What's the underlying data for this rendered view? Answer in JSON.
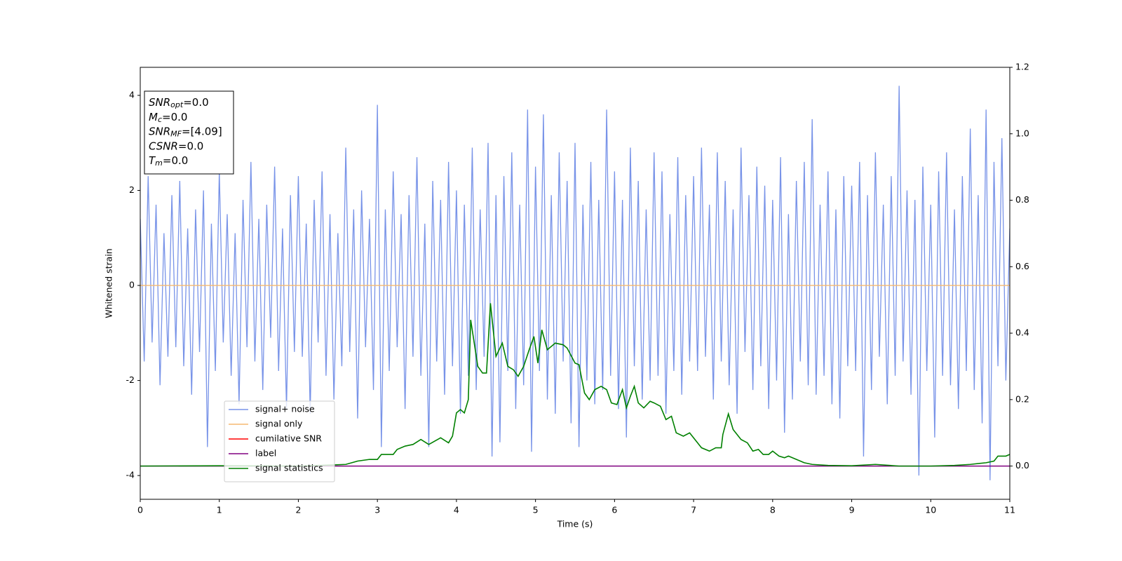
{
  "chart_data": {
    "type": "line",
    "xlabel": "Time (s)",
    "ylabel": "Whitened strain",
    "xlim": [
      0,
      11
    ],
    "xticks": [
      0,
      1,
      2,
      3,
      4,
      5,
      6,
      7,
      8,
      9,
      10,
      11
    ],
    "ylim": [
      -4.5,
      4.59
    ],
    "yticks": [
      -4,
      -2,
      0,
      2,
      4
    ],
    "y2lim": [
      -0.1,
      1.2
    ],
    "y2ticks": [
      {
        "value": 0,
        "label": "0.0"
      },
      0.2,
      0.4,
      0.6,
      0.8,
      {
        "value": 1,
        "label": "1.0"
      },
      1.2
    ],
    "annotation": [
      {
        "base": "SNR",
        "sub": "opt",
        "rest": "=0.0"
      },
      {
        "base": "M",
        "sub": "c",
        "rest": "=0.0"
      },
      {
        "base": "SNR",
        "sub": "MF",
        "rest": "=[4.09]"
      },
      {
        "base": "CSNR",
        "rest": "=0.0"
      },
      {
        "base": "T",
        "sub": "m",
        "rest": "=0.0"
      }
    ],
    "series": [
      {
        "name": "signal+ noise",
        "color": "#7893e8",
        "x": [
          0,
          0.05,
          0.1,
          0.15,
          0.2,
          0.25,
          0.3,
          0.35,
          0.4,
          0.45,
          0.5,
          0.55,
          0.6,
          0.65,
          0.7,
          0.75,
          0.8,
          0.85,
          0.9,
          0.95,
          1,
          1.05,
          1.1,
          1.15,
          1.2,
          1.25,
          1.3,
          1.35,
          1.4,
          1.45,
          1.5,
          1.55,
          1.6,
          1.65,
          1.7,
          1.75,
          1.8,
          1.85,
          1.9,
          1.95,
          2,
          2.05,
          2.1,
          2.15,
          2.2,
          2.25,
          2.3,
          2.35,
          2.4,
          2.45,
          2.5,
          2.55,
          2.6,
          2.65,
          2.7,
          2.75,
          2.8,
          2.85,
          2.9,
          2.95,
          3,
          3.05,
          3.1,
          3.15,
          3.2,
          3.25,
          3.3,
          3.35,
          3.4,
          3.45,
          3.5,
          3.55,
          3.6,
          3.65,
          3.7,
          3.75,
          3.8,
          3.85,
          3.9,
          3.95,
          4,
          4.05,
          4.1,
          4.15,
          4.2,
          4.25,
          4.3,
          4.35,
          4.4,
          4.45,
          4.5,
          4.55,
          4.6,
          4.65,
          4.7,
          4.75,
          4.8,
          4.85,
          4.9,
          4.95,
          5,
          5.05,
          5.1,
          5.15,
          5.2,
          5.25,
          5.3,
          5.35,
          5.4,
          5.45,
          5.5,
          5.55,
          5.6,
          5.65,
          5.7,
          5.75,
          5.8,
          5.85,
          5.9,
          5.95,
          6,
          6.05,
          6.1,
          6.15,
          6.2,
          6.25,
          6.3,
          6.35,
          6.4,
          6.45,
          6.5,
          6.55,
          6.6,
          6.65,
          6.7,
          6.75,
          6.8,
          6.85,
          6.9,
          6.95,
          7,
          7.05,
          7.1,
          7.15,
          7.2,
          7.25,
          7.3,
          7.35,
          7.4,
          7.45,
          7.5,
          7.55,
          7.6,
          7.65,
          7.7,
          7.75,
          7.8,
          7.85,
          7.9,
          7.95,
          8,
          8.05,
          8.1,
          8.15,
          8.2,
          8.25,
          8.3,
          8.35,
          8.4,
          8.45,
          8.5,
          8.55,
          8.6,
          8.65,
          8.7,
          8.75,
          8.8,
          8.85,
          8.9,
          8.95,
          9,
          9.05,
          9.1,
          9.15,
          9.2,
          9.25,
          9.3,
          9.35,
          9.4,
          9.45,
          9.5,
          9.55,
          9.6,
          9.65,
          9.7,
          9.75,
          9.8,
          9.85,
          9.9,
          9.95,
          10,
          10.05,
          10.1,
          10.15,
          10.2,
          10.25,
          10.3,
          10.35,
          10.4,
          10.45,
          10.5,
          10.55,
          10.6,
          10.65,
          10.7,
          10.75,
          10.8,
          10.85,
          10.9,
          10.95,
          11
        ],
        "values": [
          1.4,
          -1.6,
          2.3,
          -1.2,
          1.7,
          -2.1,
          1.1,
          -1.5,
          1.9,
          -1.3,
          2.2,
          -1.7,
          1.2,
          -2.3,
          1.6,
          -1.4,
          2.0,
          -3.4,
          1.3,
          -1.8,
          2.4,
          -1.2,
          1.5,
          -1.9,
          1.1,
          -2.5,
          1.8,
          -1.3,
          2.6,
          -1.6,
          1.4,
          -2.2,
          1.7,
          -1.1,
          2.5,
          -1.8,
          1.2,
          -2.6,
          1.9,
          -1.4,
          2.3,
          -1.5,
          1.3,
          -2.7,
          1.8,
          -1.2,
          2.4,
          -1.9,
          1.5,
          -2.4,
          1.1,
          -1.7,
          2.9,
          -1.4,
          1.6,
          -2.8,
          2.0,
          -1.3,
          1.4,
          -2.2,
          3.8,
          -3.4,
          1.6,
          -1.8,
          2.4,
          -1.3,
          1.5,
          -2.6,
          1.9,
          -1.5,
          2.7,
          -1.9,
          1.3,
          -3.4,
          2.2,
          -1.6,
          1.8,
          -2.3,
          2.6,
          -1.7,
          2.0,
          -2.7,
          1.7,
          -1.9,
          2.9,
          -2.2,
          1.6,
          -1.5,
          3.0,
          -3.6,
          1.9,
          -3.3,
          2.3,
          -1.8,
          2.8,
          -2.6,
          1.7,
          -2.1,
          3.7,
          -3.5,
          2.5,
          -1.8,
          3.6,
          -2.4,
          1.9,
          -2.7,
          2.8,
          -1.6,
          2.2,
          -2.9,
          3.0,
          -3.4,
          1.7,
          -2.0,
          2.6,
          -2.5,
          1.8,
          -2.2,
          3.7,
          -1.9,
          2.4,
          -2.6,
          1.8,
          -3.2,
          2.9,
          -1.7,
          2.2,
          -2.4,
          1.6,
          -2.0,
          2.8,
          -1.9,
          2.4,
          -2.7,
          1.5,
          -1.8,
          2.7,
          -2.3,
          1.9,
          -1.6,
          2.3,
          -1.8,
          2.9,
          -1.5,
          1.7,
          -2.4,
          2.8,
          -1.6,
          2.2,
          -2.1,
          1.6,
          -2.7,
          2.9,
          -1.4,
          1.9,
          -2.2,
          2.5,
          -1.7,
          2.1,
          -2.6,
          1.8,
          -2.0,
          2.7,
          -3.1,
          1.5,
          -2.4,
          2.2,
          -1.6,
          2.6,
          -2.1,
          3.5,
          -2.3,
          1.7,
          -1.9,
          2.4,
          -2.5,
          1.6,
          -2.8,
          2.3,
          -1.7,
          2.1,
          -1.8,
          2.6,
          -3.6,
          1.9,
          -2.2,
          2.8,
          -1.5,
          1.7,
          -2.5,
          2.3,
          -1.9,
          4.2,
          -1.6,
          2.0,
          -2.3,
          1.8,
          -4.0,
          2.5,
          -1.8,
          1.7,
          -3.2,
          2.4,
          -1.9,
          2.8,
          -2.1,
          1.6,
          -2.6,
          2.3,
          -1.8,
          3.3,
          -2.2,
          1.9,
          -2.9,
          3.7,
          -4.1,
          2.6,
          -1.7,
          3.1,
          -2.0,
          1.2
        ]
      },
      {
        "name": "signal only",
        "color": "#f5b971",
        "x": [
          0,
          11
        ],
        "values": [
          0,
          0
        ]
      },
      {
        "name": "cumilative SNR",
        "color": "#ff0000",
        "x": [],
        "values": []
      },
      {
        "name": "label",
        "color": "#800080",
        "axis": "y2",
        "x": [
          0,
          11
        ],
        "values": [
          0,
          0
        ]
      },
      {
        "name": "signal statistics",
        "color": "#008000",
        "axis": "y2",
        "x": [
          0,
          1,
          2,
          2.4,
          2.6,
          2.75,
          2.9,
          3.0,
          3.05,
          3.2,
          3.25,
          3.35,
          3.45,
          3.55,
          3.65,
          3.8,
          3.9,
          3.95,
          4.0,
          4.05,
          4.1,
          4.15,
          4.18,
          4.27,
          4.33,
          4.38,
          4.43,
          4.5,
          4.58,
          4.65,
          4.72,
          4.78,
          4.85,
          4.92,
          4.98,
          5.03,
          5.08,
          5.15,
          5.25,
          5.35,
          5.4,
          5.5,
          5.55,
          5.62,
          5.68,
          5.75,
          5.83,
          5.9,
          5.96,
          6.03,
          6.1,
          6.15,
          6.2,
          6.25,
          6.3,
          6.37,
          6.45,
          6.5,
          6.58,
          6.65,
          6.72,
          6.78,
          6.87,
          6.95,
          7.0,
          7.1,
          7.2,
          7.28,
          7.35,
          7.37,
          7.44,
          7.5,
          7.6,
          7.68,
          7.75,
          7.82,
          7.88,
          7.95,
          8.0,
          8.08,
          8.15,
          8.2,
          8.3,
          8.4,
          8.5,
          8.7,
          9.0,
          9.3,
          9.6,
          10.0,
          10.3,
          10.5,
          10.7,
          10.8,
          10.85,
          10.95,
          11.0
        ],
        "values": [
          0,
          0.001,
          0,
          0.003,
          0.005,
          0.015,
          0.02,
          0.02,
          0.035,
          0.035,
          0.05,
          0.06,
          0.065,
          0.08,
          0.065,
          0.085,
          0.07,
          0.09,
          0.16,
          0.17,
          0.16,
          0.2,
          0.44,
          0.3,
          0.28,
          0.28,
          0.49,
          0.33,
          0.37,
          0.3,
          0.29,
          0.27,
          0.3,
          0.35,
          0.39,
          0.31,
          0.41,
          0.35,
          0.37,
          0.365,
          0.355,
          0.31,
          0.305,
          0.22,
          0.2,
          0.23,
          0.24,
          0.23,
          0.19,
          0.185,
          0.23,
          0.175,
          0.21,
          0.24,
          0.19,
          0.175,
          0.195,
          0.19,
          0.18,
          0.14,
          0.15,
          0.1,
          0.09,
          0.1,
          0.085,
          0.055,
          0.045,
          0.055,
          0.055,
          0.095,
          0.157,
          0.11,
          0.08,
          0.07,
          0.045,
          0.05,
          0.035,
          0.035,
          0.045,
          0.03,
          0.025,
          0.03,
          0.02,
          0.01,
          0.005,
          0.002,
          0.001,
          0.005,
          0,
          0,
          0.002,
          0.005,
          0.01,
          0.015,
          0.03,
          0.03,
          0.035
        ]
      }
    ]
  }
}
